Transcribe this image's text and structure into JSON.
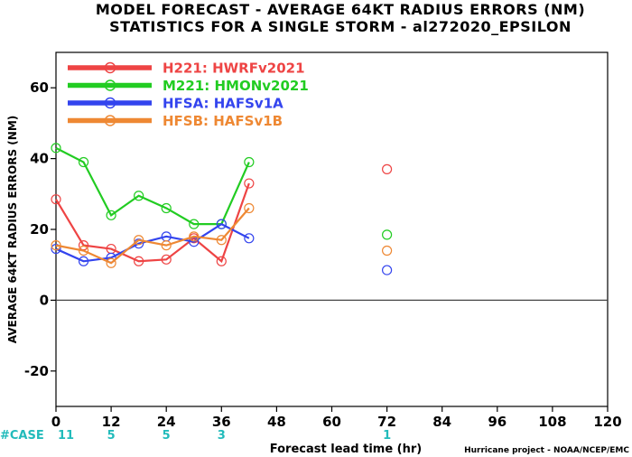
{
  "chart_data": {
    "type": "line",
    "title": "MODEL FORECAST - AVERAGE 64KT RADIUS ERRORS (NM)",
    "subtitle": "STATISTICS FOR A SINGLE STORM - al272020_EPSILON",
    "xlabel": "Forecast lead time (hr)",
    "ylabel": "AVERAGE 64KT RADIUS ERRORS (NM)",
    "xlim": [
      0,
      120
    ],
    "ylim": [
      -30,
      70
    ],
    "xticks": [
      0,
      12,
      24,
      36,
      48,
      60,
      72,
      84,
      96,
      108,
      120
    ],
    "yticks": [
      -20,
      0,
      20,
      40,
      60
    ],
    "zero_line": true,
    "legend_position": "top-left",
    "series": [
      {
        "name": "H221: HWRFv2021",
        "color": "#ee4444",
        "x": [
          0,
          6,
          12,
          18,
          24,
          30,
          36,
          42,
          72
        ],
        "y": [
          28.5,
          15.5,
          14.5,
          11,
          11.5,
          17.5,
          11,
          33,
          37
        ]
      },
      {
        "name": "M221: HMONv2021",
        "color": "#22cc22",
        "x": [
          0,
          6,
          12,
          18,
          24,
          30,
          36,
          42,
          72
        ],
        "y": [
          43,
          39,
          24,
          29.5,
          26,
          21.5,
          21.5,
          39,
          18.5
        ]
      },
      {
        "name": "HFSA: HAFSv1A",
        "color": "#3344ee",
        "x": [
          0,
          6,
          12,
          18,
          24,
          30,
          36,
          42,
          72
        ],
        "y": [
          14.5,
          11,
          12,
          16,
          18,
          16.5,
          21.5,
          17.5,
          8.5
        ]
      },
      {
        "name": "HFSB: HAFSv1B",
        "color": "#ee8833",
        "x": [
          0,
          6,
          12,
          18,
          24,
          30,
          36,
          42,
          72
        ],
        "y": [
          15.5,
          14,
          10.5,
          17,
          15.5,
          18,
          17,
          26,
          14
        ]
      }
    ],
    "case_label": "#CASE",
    "case_color": "#22bbbb",
    "cases": [
      {
        "x": 0,
        "count": "11"
      },
      {
        "x": 12,
        "count": "5"
      },
      {
        "x": 24,
        "count": "5"
      },
      {
        "x": 36,
        "count": "3"
      },
      {
        "x": 72,
        "count": "1"
      }
    ],
    "credit": "Hurricane project - NOAA/NCEP/EMC"
  }
}
